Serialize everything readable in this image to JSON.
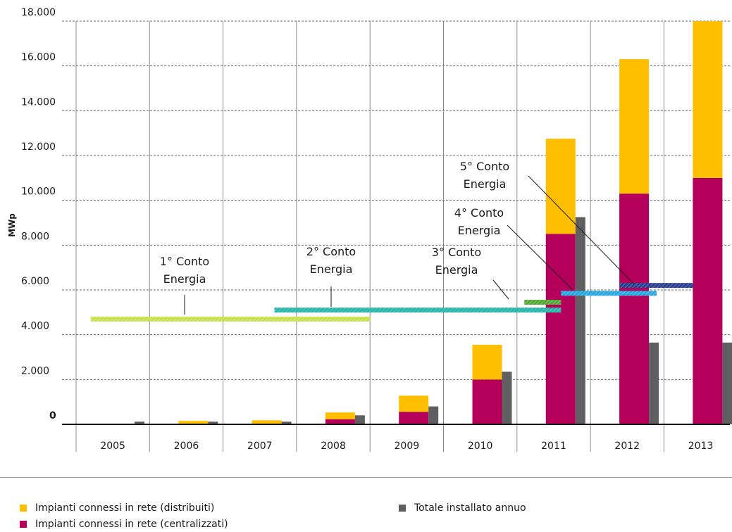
{
  "chart_data": {
    "type": "bar",
    "ylabel": "MWp",
    "xlabel": "",
    "ylim": [
      0,
      18000
    ],
    "yticks": [
      {
        "value": 0,
        "label": "0"
      },
      {
        "value": 2000,
        "label": "2.000"
      },
      {
        "value": 4000,
        "label": "4.000"
      },
      {
        "value": 6000,
        "label": "6.000"
      },
      {
        "value": 8000,
        "label": "8.000"
      },
      {
        "value": 10000,
        "label": "10.000"
      },
      {
        "value": 12000,
        "label": "12.000"
      },
      {
        "value": 14000,
        "label": "14.000"
      },
      {
        "value": 16000,
        "label": "16.000"
      },
      {
        "value": 18000,
        "label": "18.000"
      }
    ],
    "categories": [
      "2005",
      "2006",
      "2007",
      "2008",
      "2009",
      "2010",
      "2011",
      "2012",
      "2013"
    ],
    "grid": "horizontal dashed, vertical solid",
    "series": [
      {
        "name": "Impianti connessi in rete (centralizzati)",
        "color": "#b5005b",
        "stack": "cumulative",
        "values": [
          0,
          0,
          0,
          230,
          560,
          2000,
          8500,
          10300,
          11000
        ]
      },
      {
        "name": "Impianti connessi in rete (distribuiti)",
        "color": "#ffbf00",
        "stack": "cumulative",
        "values": [
          10,
          150,
          180,
          300,
          720,
          1550,
          4250,
          6000,
          7000
        ]
      },
      {
        "name": "Totale installato annuo",
        "color": "#5f5f61",
        "stack": "annual",
        "values": [
          120,
          120,
          120,
          400,
          800,
          2350,
          9250,
          3650,
          3650
        ]
      }
    ],
    "annotations": [
      {
        "label_lines": [
          "1° Conto",
          "Energia"
        ],
        "start": 2005.2,
        "end": 2009.0,
        "y": 4700,
        "color": "#c8e050"
      },
      {
        "label_lines": [
          "2° Conto",
          "Energia"
        ],
        "start": 2007.7,
        "end": 2011.6,
        "y": 5100,
        "color": "#28b4a8"
      },
      {
        "label_lines": [
          "3° Conto",
          "Energia"
        ],
        "start": 2011.1,
        "end": 2011.6,
        "y": 5450,
        "color": "#55a834"
      },
      {
        "label_lines": [
          "4° Conto",
          "Energia"
        ],
        "start": 2011.6,
        "end": 2012.9,
        "y": 5850,
        "color": "#2ba6dc"
      },
      {
        "label_lines": [
          "5° Conto",
          "Energia"
        ],
        "start": 2012.4,
        "end": 2013.4,
        "y": 6200,
        "color": "#2b3f8f"
      }
    ]
  },
  "legend": {
    "distribuiti": {
      "label": "Impianti connessi in rete (distribuiti)",
      "color": "#ffbf00"
    },
    "centralizzati": {
      "label": "Impianti connessi in rete (centralizzati)",
      "color": "#b5005b"
    },
    "totale": {
      "label": "Totale installato annuo",
      "color": "#5f5f61"
    }
  }
}
